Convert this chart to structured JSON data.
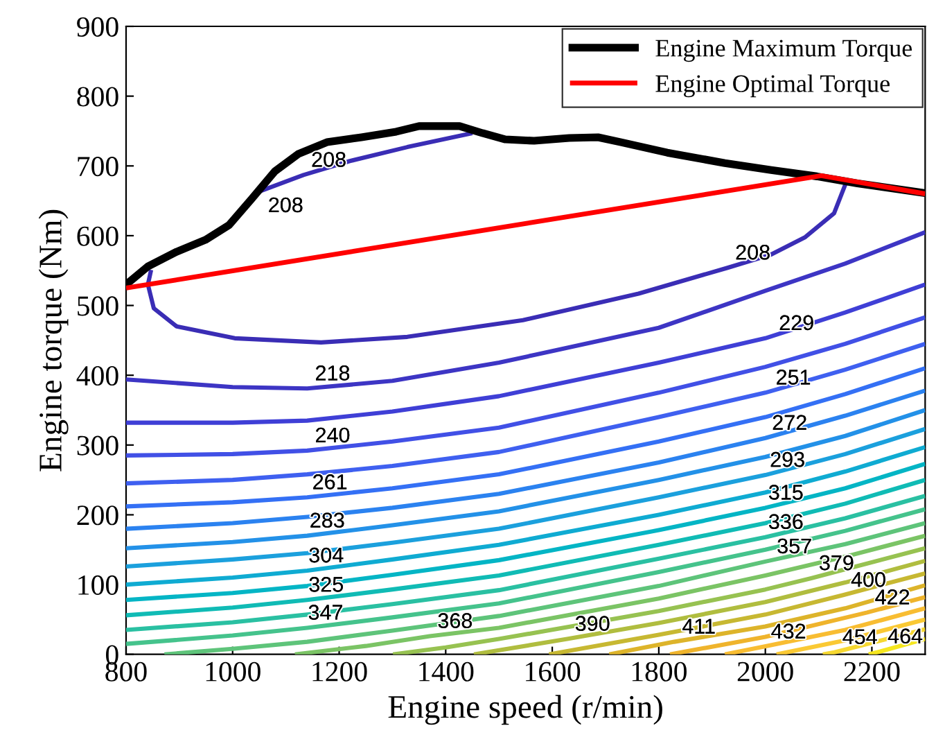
{
  "chart_data": {
    "type": "line",
    "xlabel": "Engine speed (r/min)",
    "ylabel": "Engine torque (Nm)",
    "xlim": [
      800,
      2300
    ],
    "ylim": [
      0,
      900
    ],
    "xticks": [
      800,
      1000,
      1200,
      1400,
      1600,
      1800,
      2000,
      2200
    ],
    "yticks": [
      0,
      100,
      200,
      300,
      400,
      500,
      600,
      700,
      800,
      900
    ],
    "grid": false,
    "legend": "top right",
    "line_style": "solid",
    "marker": "none",
    "series": [
      {
        "color": "#3a2db5",
        "x": [
          1052,
          1133,
          1220,
          1328,
          1450,
          null,
          2151,
          2129,
          2075,
          2011,
          1929,
          1762,
          1545,
          1328,
          1166,
          1004,
          895,
          852,
          841,
          847
        ],
        "values": [
          664,
          687,
          707,
          727,
          747,
          null,
          675,
          632,
          598,
          573,
          554,
          517,
          479,
          455,
          447,
          453,
          470,
          496,
          530,
          551
        ]
      },
      {
        "color": "#3d35c4",
        "x": [
          800,
          1000,
          1140,
          1300,
          1500,
          1800,
          2000,
          2150,
          2300
        ],
        "values": [
          394,
          383,
          381,
          392,
          418,
          468,
          521,
          560,
          605
        ]
      },
      {
        "color": "#3f3fd6",
        "x": [
          800,
          1000,
          1140,
          1300,
          1500,
          1800,
          2000,
          2150,
          2300
        ],
        "values": [
          332,
          332,
          335,
          348,
          370,
          418,
          453,
          490,
          530
        ]
      },
      {
        "color": "#4150e6",
        "x": [
          800,
          1000,
          1140,
          1300,
          1500,
          1800,
          2000,
          2150,
          2300
        ],
        "values": [
          285,
          287,
          292,
          305,
          325,
          375,
          412,
          445,
          483
        ]
      },
      {
        "color": "#3f60f0",
        "x": [
          800,
          1000,
          1140,
          1300,
          1500,
          1800,
          2000,
          2150,
          2300
        ],
        "values": [
          245,
          250,
          258,
          270,
          290,
          340,
          375,
          408,
          445
        ]
      },
      {
        "color": "#3470f5",
        "x": [
          800,
          1000,
          1140,
          1300,
          1500,
          1800,
          2000,
          2150,
          2300
        ],
        "values": [
          212,
          218,
          225,
          238,
          258,
          305,
          340,
          373,
          410
        ]
      },
      {
        "color": "#2b82f0",
        "x": [
          800,
          1000,
          1140,
          1300,
          1500,
          1800,
          2000,
          2150,
          2300
        ],
        "values": [
          180,
          188,
          197,
          210,
          230,
          275,
          310,
          342,
          378
        ]
      },
      {
        "color": "#2391e8",
        "x": [
          800,
          1000,
          1140,
          1300,
          1500,
          1800,
          2000,
          2150,
          2300
        ],
        "values": [
          152,
          161,
          170,
          185,
          205,
          250,
          283,
          313,
          350
        ]
      },
      {
        "color": "#1ba0dd",
        "x": [
          800,
          1000,
          1140,
          1300,
          1500,
          1800,
          2000,
          2150,
          2300
        ],
        "values": [
          126,
          136,
          145,
          160,
          180,
          225,
          257,
          287,
          323
        ]
      },
      {
        "color": "#0fabd2",
        "x": [
          800,
          1000,
          1140,
          1300,
          1500,
          1800,
          2000,
          2150,
          2300
        ],
        "values": [
          100,
          110,
          120,
          136,
          157,
          200,
          232,
          262,
          297
        ]
      },
      {
        "color": "#04b5c5",
        "x": [
          800,
          1000,
          1140,
          1300,
          1500,
          1800,
          2000,
          2150,
          2300
        ],
        "values": [
          78,
          88,
          98,
          114,
          135,
          178,
          210,
          238,
          273
        ]
      },
      {
        "color": "#10bbb5",
        "x": [
          800,
          1000,
          1140,
          1300,
          1500,
          1800,
          2000,
          2150,
          2300
        ],
        "values": [
          56,
          67,
          78,
          93,
          113,
          157,
          188,
          216,
          250
        ]
      },
      {
        "color": "#2ac0a2",
        "x": [
          800,
          1000,
          1140,
          1300,
          1500,
          1800,
          2000,
          2150,
          2300
        ],
        "values": [
          35,
          46,
          57,
          72,
          92,
          137,
          168,
          195,
          227
        ]
      },
      {
        "color": "#45c38c",
        "x": [
          800,
          1000,
          1140,
          1300,
          1500,
          1800,
          2000,
          2150,
          2300
        ],
        "values": [
          15,
          27,
          38,
          53,
          73,
          118,
          150,
          177,
          208
        ]
      },
      {
        "color": "#5ec47a",
        "x": [
          872,
          1000,
          1140,
          1300,
          1500,
          1800,
          2000,
          2150,
          2300
        ],
        "values": [
          0,
          8,
          18,
          34,
          55,
          98,
          133,
          158,
          188
        ]
      },
      {
        "color": "#7bc465",
        "x": [
          1117,
          1250,
          1370,
          1500,
          1800,
          2000,
          2150,
          2300
        ],
        "values": [
          0,
          12,
          26,
          38,
          80,
          113,
          140,
          170
        ]
      },
      {
        "color": "#97c251",
        "x": [
          1301,
          1400,
          1500,
          1800,
          2000,
          2086,
          2150,
          2300
        ],
        "values": [
          0,
          10,
          22,
          62,
          93,
          109,
          122,
          152
        ]
      },
      {
        "color": "#b0bd3f",
        "x": [
          1453,
          1628,
          1800,
          2000,
          2150,
          2300
        ],
        "values": [
          0,
          22,
          45,
          75,
          103,
          134
        ]
      },
      {
        "color": "#c7b832",
        "x": [
          1594,
          1800,
          2000,
          2146,
          2300
        ],
        "values": [
          0,
          28,
          57,
          85,
          116
        ]
      },
      {
        "color": "#ddb42a",
        "x": [
          1707,
          1829,
          2000,
          2150,
          2300
        ],
        "values": [
          0,
          18,
          40,
          66,
          99
        ]
      },
      {
        "color": "#efb42c",
        "x": [
          1821,
          2000,
          2191,
          2300
        ],
        "values": [
          0,
          25,
          60,
          82
        ]
      },
      {
        "color": "#f8bd32",
        "x": [
          1924,
          1996,
          2150,
          2300
        ],
        "values": [
          0,
          11,
          35,
          66
        ]
      },
      {
        "color": "#fac934",
        "x": [
          2021,
          2150,
          2300
        ],
        "values": [
          0,
          20,
          50
        ]
      },
      {
        "color": "#f6d831",
        "x": [
          2108,
          2130,
          2300
        ],
        "values": [
          0,
          3,
          36
        ]
      },
      {
        "color": "#f5e61f",
        "x": [
          2194,
          2215,
          2300
        ],
        "values": [
          0,
          4,
          22
        ]
      },
      {
        "name": "Engine Maximum Torque",
        "color": "#000000",
        "x": [
          800,
          841,
          895,
          949,
          993,
          1036,
          1079,
          1123,
          1177,
          1242,
          1307,
          1350,
          1426,
          1469,
          1512,
          1566,
          1632,
          1686,
          1729,
          1816,
          1924,
          2011,
          2097,
          2173,
          2300
        ],
        "values": [
          530,
          556,
          577,
          594,
          615,
          653,
          692,
          717,
          734,
          741,
          749,
          757,
          757,
          747,
          738,
          736,
          740,
          741,
          734,
          719,
          704,
          694,
          685,
          675,
          661
        ]
      },
      {
        "name": "Engine Optimal Torque",
        "color": "#ff0000",
        "x": [
          800,
          2105,
          2300
        ],
        "values": [
          525,
          686,
          660
        ]
      }
    ],
    "annotations": [
      {
        "text": "208",
        "x": 1133,
        "y": 687
      },
      {
        "text": "208",
        "x": 1052,
        "y": 664
      },
      {
        "text": "208",
        "x": 1929,
        "y": 554
      },
      {
        "text": "218",
        "x": 1140,
        "y": 381
      },
      {
        "text": "229",
        "x": 2011,
        "y": 453
      },
      {
        "text": "240",
        "x": 1140,
        "y": 292
      },
      {
        "text": "251",
        "x": 2005,
        "y": 375
      },
      {
        "text": "261",
        "x": 1135,
        "y": 225
      },
      {
        "text": "272",
        "x": 1998,
        "y": 310
      },
      {
        "text": "283",
        "x": 1130,
        "y": 170
      },
      {
        "text": "293",
        "x": 1994,
        "y": 257
      },
      {
        "text": "304",
        "x": 1128,
        "y": 120
      },
      {
        "text": "315",
        "x": 1991,
        "y": 210
      },
      {
        "text": "325",
        "x": 1128,
        "y": 78
      },
      {
        "text": "336",
        "x": 1991,
        "y": 168
      },
      {
        "text": "347",
        "x": 1127,
        "y": 38
      },
      {
        "text": "357",
        "x": 2007,
        "y": 133
      },
      {
        "text": "368",
        "x": 1370,
        "y": 26
      },
      {
        "text": "379",
        "x": 2086,
        "y": 109
      },
      {
        "text": "390",
        "x": 1628,
        "y": 22
      },
      {
        "text": "400",
        "x": 2146,
        "y": 85
      },
      {
        "text": "411",
        "x": 1829,
        "y": 18
      },
      {
        "text": "422",
        "x": 2191,
        "y": 60
      },
      {
        "text": "432",
        "x": 1996,
        "y": 11
      },
      {
        "text": "454",
        "x": 2130,
        "y": 3
      },
      {
        "text": "464",
        "x": 2215,
        "y": 4
      }
    ]
  }
}
